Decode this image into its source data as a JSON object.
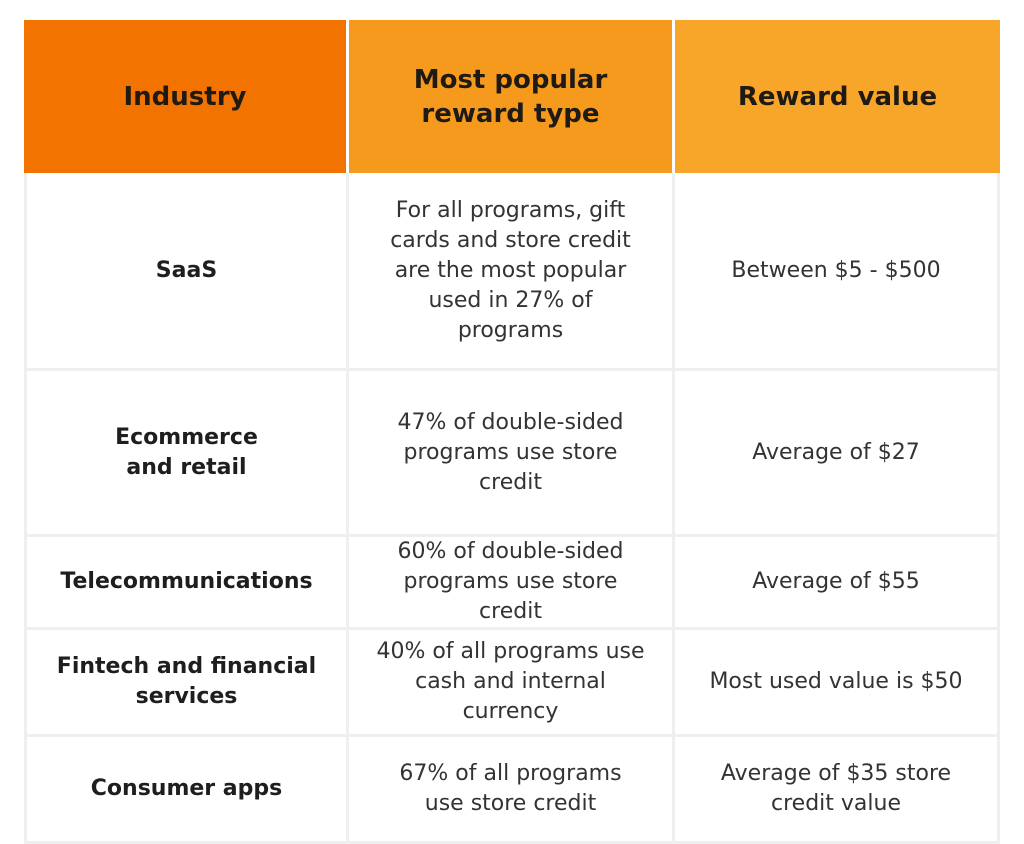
{
  "table": {
    "headers": [
      "Industry",
      "Most popular reward type",
      "Reward value"
    ],
    "rows": [
      {
        "industry": "SaaS",
        "reward_type": "For all programs, gift cards and store credit are the most popular used in  27% of programs",
        "reward_value": "Between $5 - $500"
      },
      {
        "industry": "Ecommerce and retail",
        "reward_type": "47% of double-sided programs use store credit",
        "reward_value": "Average of $27"
      },
      {
        "industry": "Telecommunications",
        "reward_type": "60% of double-sided programs use store credit",
        "reward_value": "Average of $55"
      },
      {
        "industry": "Fintech and financial services",
        "reward_type": "40% of all programs use cash and internal currency",
        "reward_value": "Most used value is $50"
      },
      {
        "industry": "Consumer apps",
        "reward_type": "67% of all programs use store credit",
        "reward_value": "Average of $35 store credit value"
      }
    ],
    "colors": {
      "header_col1": "#f27300",
      "header_col2": "#f69a1e",
      "header_col3": "#f8a62a",
      "grid": "#efefef"
    }
  }
}
